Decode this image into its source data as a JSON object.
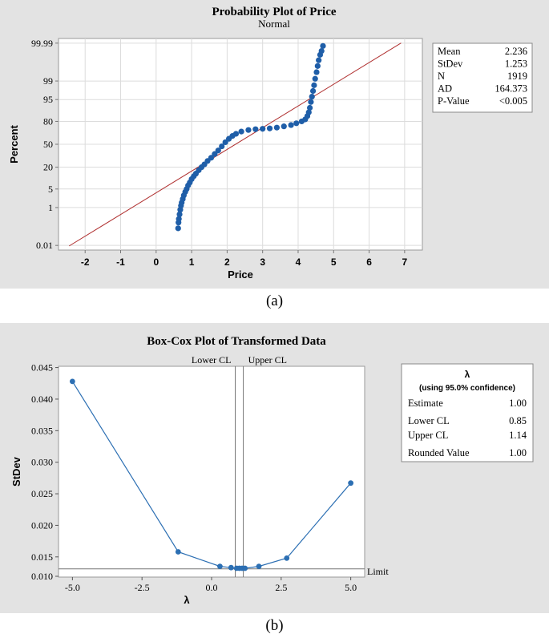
{
  "chart_data": [
    {
      "type": "scatter",
      "title": "Probability Plot of Price",
      "subtitle": "Normal",
      "xlabel": "Price",
      "ylabel": "Percent",
      "xlim": [
        -2.75,
        7.5
      ],
      "x_ticks": [
        "-2",
        "-1",
        "0",
        "1",
        "2",
        "3",
        "4",
        "5",
        "6",
        "7"
      ],
      "y_ticks": [
        "0.01",
        "1",
        "5",
        "20",
        "50",
        "80",
        "95",
        "99",
        "99.99"
      ],
      "y_scale": "normal probability",
      "grid": true,
      "fit_line": {
        "mean": 2.236,
        "stdev": 1.253,
        "color": "#b03030"
      },
      "points_color": "#1f5ea8",
      "points": [
        [
          0.62,
          0.1
        ],
        [
          0.63,
          0.2
        ],
        [
          0.64,
          0.3
        ],
        [
          0.66,
          0.5
        ],
        [
          0.68,
          0.8
        ],
        [
          0.7,
          1.2
        ],
        [
          0.72,
          1.6
        ],
        [
          0.75,
          2.2
        ],
        [
          0.78,
          3
        ],
        [
          0.82,
          4
        ],
        [
          0.86,
          5
        ],
        [
          0.9,
          6.5
        ],
        [
          0.95,
          8
        ],
        [
          1.0,
          10
        ],
        [
          1.06,
          12
        ],
        [
          1.12,
          14
        ],
        [
          1.2,
          17
        ],
        [
          1.28,
          20
        ],
        [
          1.36,
          23
        ],
        [
          1.45,
          27
        ],
        [
          1.55,
          31
        ],
        [
          1.65,
          36
        ],
        [
          1.75,
          41
        ],
        [
          1.85,
          47
        ],
        [
          1.95,
          53
        ],
        [
          2.05,
          58
        ],
        [
          2.15,
          62
        ],
        [
          2.25,
          65
        ],
        [
          2.4,
          68
        ],
        [
          2.6,
          70
        ],
        [
          2.8,
          71
        ],
        [
          3.0,
          71.5
        ],
        [
          3.2,
          72
        ],
        [
          3.4,
          73
        ],
        [
          3.6,
          74.5
        ],
        [
          3.8,
          76
        ],
        [
          3.95,
          78
        ],
        [
          4.1,
          80
        ],
        [
          4.2,
          82
        ],
        [
          4.26,
          85
        ],
        [
          4.3,
          88
        ],
        [
          4.33,
          91
        ],
        [
          4.36,
          94
        ],
        [
          4.39,
          96
        ],
        [
          4.42,
          97.5
        ],
        [
          4.45,
          98.5
        ],
        [
          4.48,
          99.2
        ],
        [
          4.52,
          99.6
        ],
        [
          4.55,
          99.8
        ],
        [
          4.58,
          99.9
        ],
        [
          4.62,
          99.95
        ],
        [
          4.66,
          99.97
        ],
        [
          4.7,
          99.985
        ]
      ],
      "stats": [
        {
          "label": "Mean",
          "value": "2.236"
        },
        {
          "label": "StDev",
          "value": "1.253"
        },
        {
          "label": "N",
          "value": "1919"
        },
        {
          "label": "AD",
          "value": "164.373"
        },
        {
          "label": "P-Value",
          "value": "<0.005"
        }
      ]
    },
    {
      "type": "line",
      "title": "Box-Cox Plot of Transformed Data",
      "xlabel": "λ",
      "ylabel": "StDev",
      "xlim": [
        -5.5,
        5.5
      ],
      "ylim": [
        0.0118,
        0.0452
      ],
      "x_ticks": [
        "-5.0",
        "-2.5",
        "0.0",
        "2.5",
        "5.0"
      ],
      "y_ticks": [
        "0.010",
        "0.015",
        "0.020",
        "0.025",
        "0.030",
        "0.035",
        "0.040",
        "0.045"
      ],
      "series_color": "#2c6fb3",
      "x": [
        -5.0,
        -1.2,
        0.3,
        0.7,
        0.9,
        1.0,
        1.1,
        1.2,
        1.7,
        2.7,
        5.0
      ],
      "y": [
        0.0428,
        0.0158,
        0.0135,
        0.0133,
        0.0132,
        0.0132,
        0.0132,
        0.0132,
        0.0135,
        0.0148,
        0.0267
      ],
      "limit": {
        "value": 0.0131,
        "label": "Limit"
      },
      "lower_cl": {
        "value": 0.85,
        "label": "Lower CL"
      },
      "upper_cl": {
        "value": 1.14,
        "label": "Upper CL"
      },
      "legend": {
        "header": "λ",
        "subheader": "(using 95.0% confidence)",
        "rows": [
          {
            "label": "Estimate",
            "value": "1.00"
          },
          {
            "label": "Lower CL",
            "value": "0.85"
          },
          {
            "label": "Upper CL",
            "value": "1.14"
          },
          {
            "label": "Rounded Value",
            "value": "1.00"
          }
        ]
      }
    }
  ],
  "captions": {
    "a": "(a)",
    "b": "(b)"
  }
}
